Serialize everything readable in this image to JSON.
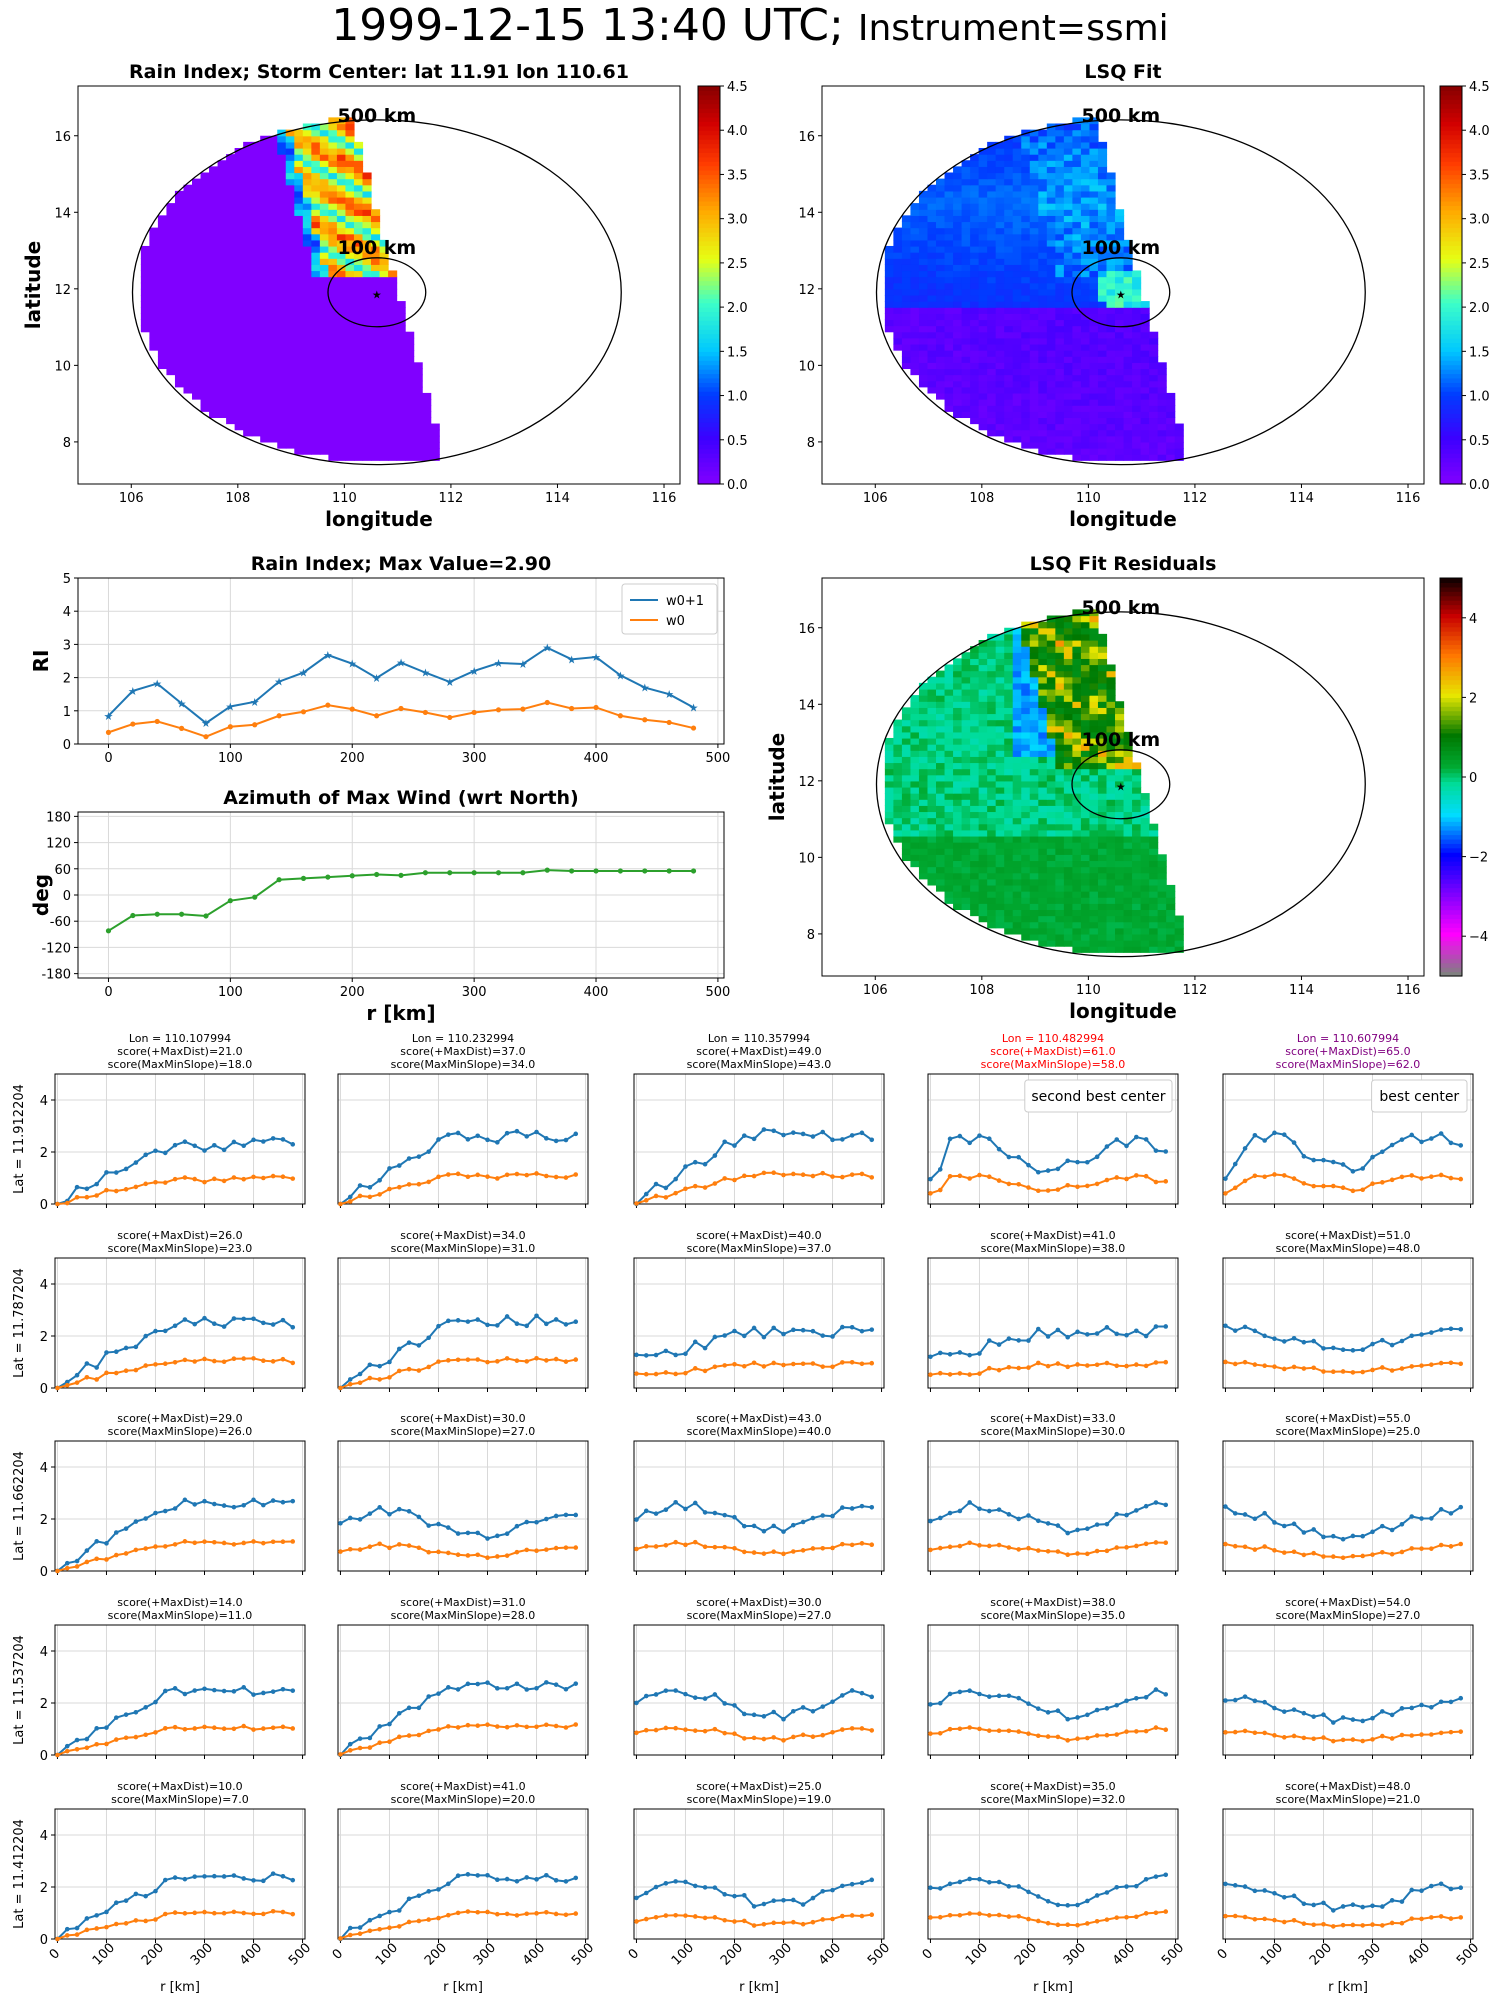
{
  "page": {
    "title_main": "1999-12-15 13:40 UTC;",
    "title_instrument": "Instrument=ssmi"
  },
  "colors": {
    "w0p1": "#1f77b4",
    "w0": "#ff7f0e",
    "azimuth": "#2ca02c",
    "highlight_red": "#ff0000",
    "highlight_purple": "#800080"
  },
  "chart_data": [
    {
      "id": "rain_index_map",
      "type": "heatmap",
      "title": "Rain Index; Storm Center: lat 11.91 lon 110.61",
      "xlabel": "longitude",
      "ylabel": "latitude",
      "xlim": [
        105,
        116.3
      ],
      "ylim": [
        6.9,
        17.3
      ],
      "xticks": [
        106,
        108,
        110,
        112,
        114,
        116
      ],
      "yticks": [
        8,
        10,
        12,
        14,
        16
      ],
      "center": [
        110.61,
        11.91
      ],
      "circle_labels": [
        "500 km",
        "100 km"
      ],
      "colormap": "jet",
      "colorbar_range": [
        0,
        4.5
      ],
      "colorbar_ticks": [
        "0.0",
        "0.5",
        "1.0",
        "1.5",
        "2.0",
        "2.5",
        "3.0",
        "3.5",
        "4.0",
        "4.5"
      ]
    },
    {
      "id": "lsq_fit_map",
      "type": "heatmap",
      "title": "LSQ Fit",
      "xlabel": "longitude",
      "xlim": [
        105,
        116.3
      ],
      "ylim": [
        6.9,
        17.3
      ],
      "xticks": [
        106,
        108,
        110,
        112,
        114,
        116
      ],
      "yticks": [
        8,
        10,
        12,
        14,
        16
      ],
      "circle_labels": [
        "500 km",
        "100 km"
      ],
      "colormap": "jet",
      "colorbar_range": [
        0,
        4.5
      ],
      "colorbar_ticks": [
        "0.0",
        "0.5",
        "1.0",
        "1.5",
        "2.0",
        "2.5",
        "3.0",
        "3.5",
        "4.0",
        "4.5"
      ]
    },
    {
      "id": "rain_index_profile",
      "type": "line",
      "title": "Rain Index; Max Value=2.90",
      "ylabel": "RI",
      "xlim": [
        -25,
        505
      ],
      "ylim": [
        0,
        5
      ],
      "xticks": [
        0,
        100,
        200,
        300,
        400,
        500
      ],
      "yticks": [
        0,
        1,
        2,
        3,
        4,
        5
      ],
      "grid": true,
      "legend": "top-right",
      "x": [
        0,
        20,
        40,
        60,
        80,
        100,
        120,
        140,
        160,
        180,
        200,
        220,
        240,
        260,
        280,
        300,
        320,
        340,
        360,
        380,
        400,
        420,
        440,
        460,
        480
      ],
      "series": [
        {
          "name": "w0+1",
          "values": [
            0.85,
            1.6,
            1.82,
            1.22,
            0.63,
            1.13,
            1.27,
            1.88,
            2.15,
            2.68,
            2.42,
            1.99,
            2.45,
            2.15,
            1.87,
            2.2,
            2.44,
            2.41,
            2.9,
            2.55,
            2.62,
            2.07,
            1.7,
            1.5,
            1.1
          ]
        },
        {
          "name": "w0",
          "values": [
            0.35,
            0.6,
            0.68,
            0.47,
            0.22,
            0.52,
            0.58,
            0.85,
            0.97,
            1.17,
            1.05,
            0.85,
            1.07,
            0.95,
            0.8,
            0.95,
            1.03,
            1.05,
            1.25,
            1.07,
            1.1,
            0.85,
            0.73,
            0.65,
            0.48
          ]
        }
      ]
    },
    {
      "id": "azimuth_profile",
      "type": "line",
      "title": "Azimuth of Max Wind (wrt North)",
      "xlabel": "r [km]",
      "ylabel": "deg",
      "xlim": [
        -25,
        505
      ],
      "ylim": [
        -190,
        190
      ],
      "xticks": [
        0,
        100,
        200,
        300,
        400,
        500
      ],
      "yticks": [
        -180,
        -120,
        -60,
        0,
        60,
        120,
        180
      ],
      "grid": true,
      "x": [
        0,
        20,
        40,
        60,
        80,
        100,
        120,
        140,
        160,
        180,
        200,
        220,
        240,
        260,
        280,
        300,
        320,
        340,
        360,
        380,
        400,
        420,
        440,
        460,
        480
      ],
      "values": [
        -82,
        -47,
        -44,
        -44,
        -48,
        -13,
        -5,
        35,
        38,
        41,
        44,
        47,
        45,
        51,
        51,
        51,
        51,
        51,
        57,
        55,
        55,
        55,
        55,
        55,
        55
      ]
    },
    {
      "id": "lsq_residual_map",
      "type": "heatmap",
      "title": "LSQ Fit Residuals",
      "xlabel": "longitude",
      "ylabel": "latitude",
      "xlim": [
        105,
        116.3
      ],
      "ylim": [
        6.9,
        17.3
      ],
      "xticks": [
        106,
        108,
        110,
        112,
        114,
        116
      ],
      "yticks": [
        8,
        10,
        12,
        14,
        16
      ],
      "circle_labels": [
        "500 km",
        "100 km"
      ],
      "colormap": "residual",
      "colorbar_range": [
        -5,
        5
      ],
      "colorbar_ticks": [
        "−4",
        "−2",
        "0",
        "2",
        "4"
      ],
      "colorbar_tick_values": [
        -4,
        -2,
        0,
        2,
        4
      ]
    },
    {
      "id": "center_search_grid",
      "type": "line",
      "xlabel": "r [km]",
      "xlim": [
        -5,
        505
      ],
      "ylim": [
        0,
        5
      ],
      "xticks": [
        0,
        100,
        200,
        300,
        400,
        500
      ],
      "yticks": [
        0,
        2,
        4
      ],
      "grid": true,
      "columns": [
        {
          "lon": "Lon = 110.107994"
        },
        {
          "lon": "Lon = 110.232994"
        },
        {
          "lon": "Lon = 110.357994"
        },
        {
          "lon": "Lon = 110.482994"
        },
        {
          "lon": "Lon = 110.607994"
        }
      ],
      "rows": [
        {
          "lat": "Lat = 11.912204"
        },
        {
          "lat": "Lat = 11.787204"
        },
        {
          "lat": "Lat = 11.662204"
        },
        {
          "lat": "Lat = 11.537204"
        },
        {
          "lat": "Lat = 11.412204"
        }
      ],
      "panels": [
        [
          {
            "s1": "score(+MaxDist)=21.0",
            "s2": "score(MaxMinSlope)=18.0",
            "title_color": "#000000",
            "legend": "",
            "seed": 11,
            "shape": "rise",
            "base": 1.3,
            "amp": 1.1
          },
          {
            "s1": "score(+MaxDist)=37.0",
            "s2": "score(MaxMinSlope)=34.0",
            "title_color": "#000000",
            "legend": "",
            "seed": 12,
            "shape": "rise",
            "base": 1.6,
            "amp": 0.9
          },
          {
            "s1": "score(+MaxDist)=49.0",
            "s2": "score(MaxMinSlope)=43.0",
            "title_color": "#000000",
            "legend": "",
            "seed": 13,
            "shape": "rise",
            "base": 1.7,
            "amp": 0.9
          },
          {
            "s1": "score(+MaxDist)=61.0",
            "s2": "score(MaxMinSlope)=58.0",
            "title_color": "#ff0000",
            "legend": "second best center",
            "seed": 14,
            "shape": "flat",
            "base": 1.9,
            "amp": 0.8
          },
          {
            "s1": "score(+MaxDist)=65.0",
            "s2": "score(MaxMinSlope)=62.0",
            "title_color": "#800080",
            "legend": "best center",
            "seed": 15,
            "shape": "flat",
            "base": 2.0,
            "amp": 0.8
          }
        ],
        [
          {
            "s1": "score(+MaxDist)=26.0",
            "s2": "score(MaxMinSlope)=23.0",
            "title_color": "#000000",
            "legend": "",
            "seed": 21,
            "shape": "rise",
            "base": 1.5,
            "amp": 0.9
          },
          {
            "s1": "score(+MaxDist)=34.0",
            "s2": "score(MaxMinSlope)=31.0",
            "title_color": "#000000",
            "legend": "",
            "seed": 22,
            "shape": "rise",
            "base": 1.6,
            "amp": 0.8
          },
          {
            "s1": "score(+MaxDist)=40.0",
            "s2": "score(MaxMinSlope)=37.0",
            "title_color": "#000000",
            "legend": "",
            "seed": 23,
            "shape": "mid",
            "base": 1.8,
            "amp": 0.7
          },
          {
            "s1": "score(+MaxDist)=41.0",
            "s2": "score(MaxMinSlope)=38.0",
            "title_color": "#000000",
            "legend": "",
            "seed": 24,
            "shape": "mid",
            "base": 1.8,
            "amp": 0.7
          },
          {
            "s1": "score(+MaxDist)=51.0",
            "s2": "score(MaxMinSlope)=48.0",
            "title_color": "#000000",
            "legend": "",
            "seed": 25,
            "shape": "dip",
            "base": 1.9,
            "amp": 0.7
          }
        ],
        [
          {
            "s1": "score(+MaxDist)=29.0",
            "s2": "score(MaxMinSlope)=26.0",
            "title_color": "#000000",
            "legend": "",
            "seed": 31,
            "shape": "rise",
            "base": 1.6,
            "amp": 0.7
          },
          {
            "s1": "score(+MaxDist)=30.0",
            "s2": "score(MaxMinSlope)=27.0",
            "title_color": "#000000",
            "legend": "",
            "seed": 32,
            "shape": "low",
            "base": 1.5,
            "amp": 0.6
          },
          {
            "s1": "score(+MaxDist)=43.0",
            "s2": "score(MaxMinSlope)=40.0",
            "title_color": "#000000",
            "legend": "",
            "seed": 33,
            "shape": "low",
            "base": 1.7,
            "amp": 0.7
          },
          {
            "s1": "score(+MaxDist)=33.0",
            "s2": "score(MaxMinSlope)=30.0",
            "title_color": "#000000",
            "legend": "",
            "seed": 34,
            "shape": "low",
            "base": 1.7,
            "amp": 0.6
          },
          {
            "s1": "score(+MaxDist)=55.0",
            "s2": "score(MaxMinSlope)=25.0",
            "title_color": "#000000",
            "legend": "",
            "seed": 35,
            "shape": "dip",
            "base": 1.8,
            "amp": 0.8
          }
        ],
        [
          {
            "s1": "score(+MaxDist)=14.0",
            "s2": "score(MaxMinSlope)=11.0",
            "title_color": "#000000",
            "legend": "",
            "seed": 41,
            "shape": "rise",
            "base": 1.5,
            "amp": 0.7
          },
          {
            "s1": "score(+MaxDist)=31.0",
            "s2": "score(MaxMinSlope)=28.0",
            "title_color": "#000000",
            "legend": "",
            "seed": 42,
            "shape": "rise",
            "base": 1.7,
            "amp": 0.6
          },
          {
            "s1": "score(+MaxDist)=30.0",
            "s2": "score(MaxMinSlope)=27.0",
            "title_color": "#000000",
            "legend": "",
            "seed": 43,
            "shape": "low",
            "base": 1.6,
            "amp": 0.6
          },
          {
            "s1": "score(+MaxDist)=38.0",
            "s2": "score(MaxMinSlope)=35.0",
            "title_color": "#000000",
            "legend": "",
            "seed": 44,
            "shape": "low",
            "base": 1.6,
            "amp": 0.6
          },
          {
            "s1": "score(+MaxDist)=54.0",
            "s2": "score(MaxMinSlope)=27.0",
            "title_color": "#000000",
            "legend": "",
            "seed": 45,
            "shape": "dip",
            "base": 1.7,
            "amp": 0.7
          }
        ],
        [
          {
            "s1": "score(+MaxDist)=10.0",
            "s2": "score(MaxMinSlope)=7.0",
            "title_color": "#000000",
            "legend": "",
            "seed": 51,
            "shape": "rise",
            "base": 1.4,
            "amp": 0.7
          },
          {
            "s1": "score(+MaxDist)=41.0",
            "s2": "score(MaxMinSlope)=20.0",
            "title_color": "#000000",
            "legend": "",
            "seed": 52,
            "shape": "rise",
            "base": 1.4,
            "amp": 0.6
          },
          {
            "s1": "score(+MaxDist)=25.0",
            "s2": "score(MaxMinSlope)=19.0",
            "title_color": "#000000",
            "legend": "",
            "seed": 53,
            "shape": "low",
            "base": 1.4,
            "amp": 0.6
          },
          {
            "s1": "score(+MaxDist)=35.0",
            "s2": "score(MaxMinSlope)=32.0",
            "title_color": "#000000",
            "legend": "",
            "seed": 54,
            "shape": "low",
            "base": 1.5,
            "amp": 0.6
          },
          {
            "s1": "score(+MaxDist)=48.0",
            "s2": "score(MaxMinSlope)=21.0",
            "title_color": "#000000",
            "legend": "",
            "seed": 55,
            "shape": "dip",
            "base": 1.6,
            "amp": 0.7
          }
        ]
      ]
    }
  ]
}
